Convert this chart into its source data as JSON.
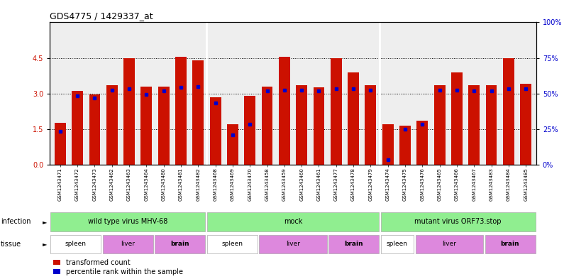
{
  "title": "GDS4775 / 1429337_at",
  "samples": [
    "GSM1243471",
    "GSM1243472",
    "GSM1243473",
    "GSM1243462",
    "GSM1243463",
    "GSM1243464",
    "GSM1243480",
    "GSM1243481",
    "GSM1243482",
    "GSM1243468",
    "GSM1243469",
    "GSM1243470",
    "GSM1243458",
    "GSM1243459",
    "GSM1243460",
    "GSM1243461",
    "GSM1243477",
    "GSM1243478",
    "GSM1243479",
    "GSM1243474",
    "GSM1243475",
    "GSM1243476",
    "GSM1243465",
    "GSM1243466",
    "GSM1243467",
    "GSM1243483",
    "GSM1243484",
    "GSM1243485"
  ],
  "red_values": [
    1.75,
    3.1,
    2.95,
    3.35,
    4.5,
    3.3,
    3.3,
    4.55,
    4.4,
    2.85,
    1.7,
    2.9,
    3.3,
    4.55,
    3.35,
    3.25,
    4.5,
    3.9,
    3.35,
    1.7,
    1.65,
    1.85,
    3.35,
    3.9,
    3.35,
    3.35,
    4.5,
    3.4
  ],
  "blue_values": [
    1.4,
    2.9,
    2.8,
    3.15,
    3.2,
    2.95,
    3.1,
    3.25,
    3.3,
    2.6,
    1.25,
    1.7,
    3.1,
    3.15,
    3.15,
    3.1,
    3.2,
    3.2,
    3.15,
    0.2,
    1.5,
    1.7,
    3.15,
    3.15,
    3.1,
    3.1,
    3.2,
    3.2
  ],
  "ylim_left": [
    0,
    6
  ],
  "ylim_right": [
    0,
    100
  ],
  "yticks_left": [
    0,
    1.5,
    3.0,
    4.5
  ],
  "yticks_right": [
    0,
    25,
    50,
    75,
    100
  ],
  "bar_color": "#CC1100",
  "dot_color": "#0000CC",
  "infection_spans": [
    [
      0,
      9,
      "wild type virus MHV-68"
    ],
    [
      9,
      19,
      "mock"
    ],
    [
      19,
      28,
      "mutant virus ORF73.stop"
    ]
  ],
  "tissue_spans": [
    [
      0,
      3,
      "spleen",
      "#FFFFFF"
    ],
    [
      3,
      6,
      "liver",
      "#DD88DD"
    ],
    [
      6,
      9,
      "brain",
      "#DD88DD"
    ],
    [
      9,
      12,
      "spleen",
      "#FFFFFF"
    ],
    [
      12,
      16,
      "liver",
      "#DD88DD"
    ],
    [
      16,
      19,
      "brain",
      "#DD88DD"
    ],
    [
      19,
      21,
      "spleen",
      "#FFFFFF"
    ],
    [
      21,
      25,
      "liver",
      "#DD88DD"
    ],
    [
      25,
      28,
      "brain",
      "#DD88DD"
    ]
  ],
  "inf_color": "#90EE90",
  "chart_bg": "#EEEEEE"
}
